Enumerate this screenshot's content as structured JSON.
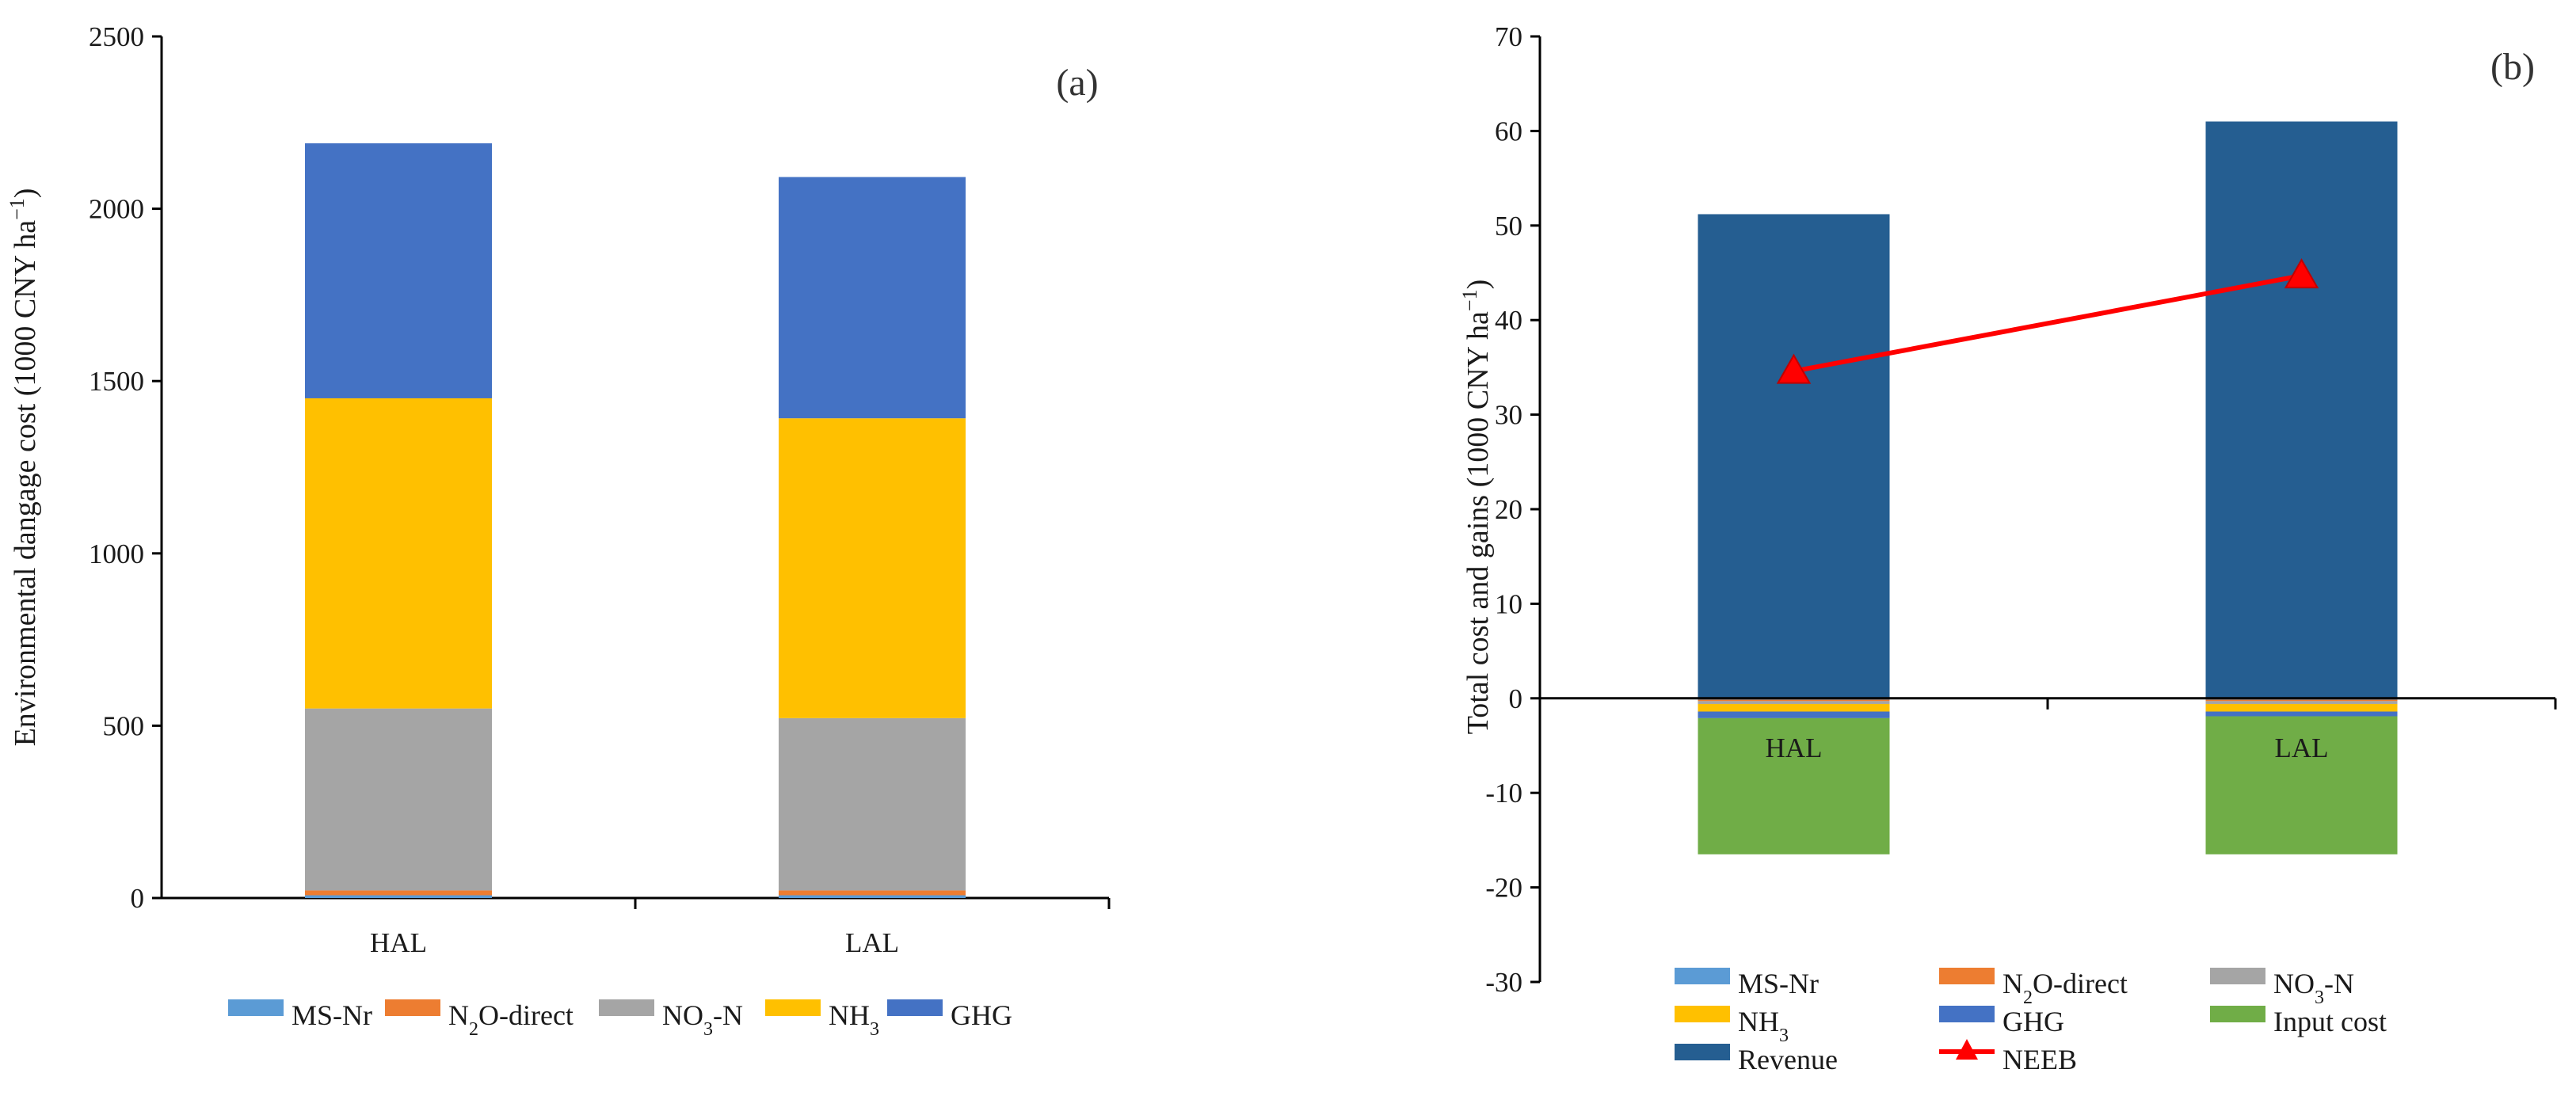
{
  "chart_data": [
    {
      "type": "bar",
      "stacked": true,
      "panel_label": "(a)",
      "ylabel": "Environmental dangage cost (1000 CNY ha",
      "ylabel_sup": "−1",
      "ylabel_close": ")",
      "ylim": [
        0,
        2500
      ],
      "yticks": [
        0,
        500,
        1000,
        1500,
        2000,
        2500
      ],
      "categories": [
        "HAL",
        "LAL"
      ],
      "series": [
        {
          "name": "MS-Nr",
          "color": "#5B9BD5",
          "values": [
            8,
            8
          ]
        },
        {
          "name": "N₂O-direct",
          "color": "#ED7D31",
          "values": [
            14,
            14
          ]
        },
        {
          "name": "NO₃-N",
          "color": "#A5A5A5",
          "values": [
            528,
            500
          ]
        },
        {
          "name": "NH₃",
          "color": "#FFC000",
          "values": [
            900,
            870
          ]
        },
        {
          "name": "GHG",
          "color": "#4472C4",
          "values": [
            740,
            700
          ]
        }
      ],
      "legend_position": "bottom",
      "grid": false
    },
    {
      "type": "bar",
      "stacked": true,
      "panel_label": "(b)",
      "ylabel": "Total cost and gains (1000 CNY ha",
      "ylabel_sup": "−1",
      "ylabel_close": ")",
      "ylim": [
        -30,
        70
      ],
      "yticks": [
        -30,
        -20,
        -10,
        0,
        10,
        20,
        30,
        40,
        50,
        60,
        70
      ],
      "categories": [
        "HAL",
        "LAL"
      ],
      "negative_series": [
        {
          "name": "MS-Nr",
          "color": "#5B9BD5",
          "values": [
            -0.15,
            -0.15
          ]
        },
        {
          "name": "N₂O-direct",
          "color": "#ED7D31",
          "values": [
            -0.15,
            -0.15
          ]
        },
        {
          "name": "NO₃-N",
          "color": "#A5A5A5",
          "values": [
            -0.3,
            -0.3
          ]
        },
        {
          "name": "NH₃",
          "color": "#FFC000",
          "values": [
            -0.8,
            -0.8
          ]
        },
        {
          "name": "GHG",
          "color": "#4472C4",
          "values": [
            -0.7,
            -0.5
          ]
        },
        {
          "name": "Input cost",
          "color": "#70AD47",
          "values": [
            -14.4,
            -14.6
          ]
        }
      ],
      "positive_series": [
        {
          "name": "Revenue",
          "color": "#255E91",
          "values": [
            51.2,
            61.0
          ]
        }
      ],
      "line_series": {
        "name": "NEEB",
        "color": "#FF0000",
        "marker": "triangle",
        "values": [
          34.6,
          44.7
        ]
      },
      "legend_position": "bottom",
      "legend_order": [
        "MS-Nr",
        "N₂O-direct",
        "NO₃-N",
        "NH₃",
        "GHG",
        "Input cost",
        "Revenue",
        "NEEB"
      ],
      "grid": false
    }
  ]
}
